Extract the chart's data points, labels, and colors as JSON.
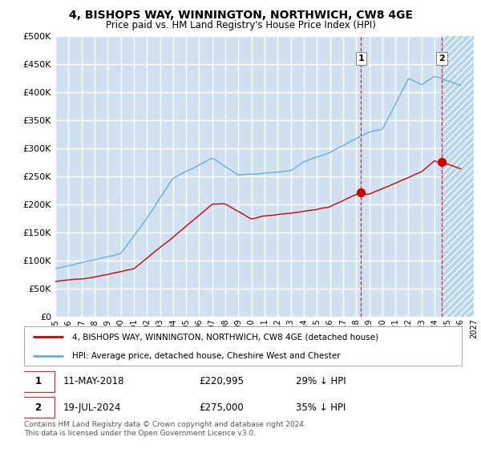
{
  "title": "4, BISHOPS WAY, WINNINGTON, NORTHWICH, CW8 4GE",
  "subtitle": "Price paid vs. HM Land Registry's House Price Index (HPI)",
  "ylim": [
    0,
    500000
  ],
  "yticks": [
    0,
    50000,
    100000,
    150000,
    200000,
    250000,
    300000,
    350000,
    400000,
    450000,
    500000
  ],
  "background_color": "#cfe0f0",
  "grid_color": "#ffffff",
  "hpi_color": "#6baed6",
  "price_color": "#cc0000",
  "legend1": "4, BISHOPS WAY, WINNINGTON, NORTHWICH, CW8 4GE (detached house)",
  "legend2": "HPI: Average price, detached house, Cheshire West and Chester",
  "footer": "Contains HM Land Registry data © Crown copyright and database right 2024.\nThis data is licensed under the Open Government Licence v3.0.",
  "sale1_year": 2018.37,
  "sale1_price": 220995,
  "sale2_year": 2024.55,
  "sale2_price": 275000,
  "xmin": 1995,
  "xmax": 2027,
  "shade_start": 2024.6
}
